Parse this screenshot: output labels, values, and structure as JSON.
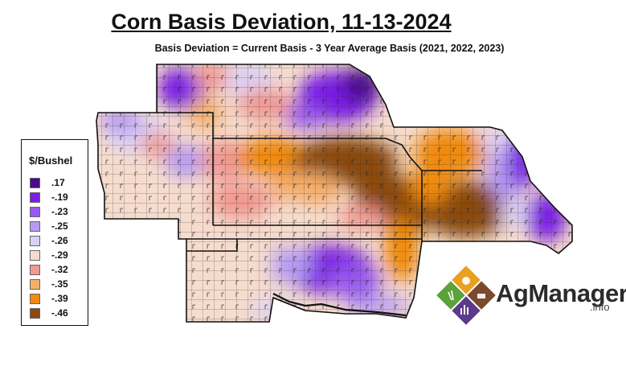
{
  "title": "Corn Basis Deviation, 11-13-2024",
  "subtitle": "Basis Deviation = Current Basis - 3 Year Average Basis (2021, 2022, 2023)",
  "legend": {
    "title": "$/Bushel",
    "items": [
      {
        "label": ".17",
        "color": "#4b0a8c"
      },
      {
        "label": "-.19",
        "color": "#7a1fe6"
      },
      {
        "label": "-.23",
        "color": "#9a58f0"
      },
      {
        "label": "-.25",
        "color": "#b69af3"
      },
      {
        "label": "-.26",
        "color": "#dcd0f5"
      },
      {
        "label": "-.29",
        "color": "#f6dccd"
      },
      {
        "label": "-.32",
        "color": "#f19890"
      },
      {
        "label": "-.35",
        "color": "#f5ae6a"
      },
      {
        "label": "-.39",
        "color": "#f08a10"
      },
      {
        "label": "-.46",
        "color": "#8a4a0e"
      }
    ]
  },
  "logo": {
    "name": "AgManager",
    "suffix": ".info"
  }
}
